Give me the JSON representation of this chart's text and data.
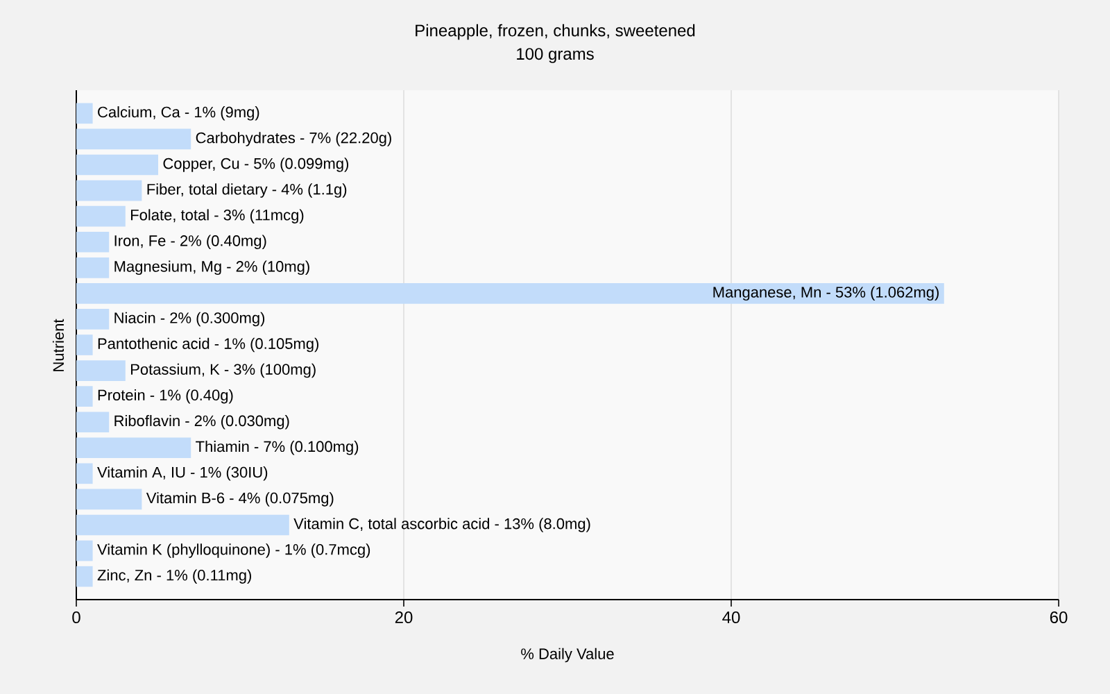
{
  "chart_data": {
    "type": "bar",
    "title": "Pineapple, frozen, chunks, sweetened",
    "subtitle": "100 grams",
    "xlabel": "% Daily Value",
    "ylabel": "Nutrient",
    "orientation": "horizontal",
    "categories": [
      "Calcium, Ca - 1% (9mg)",
      "Carbohydrates - 7% (22.20g)",
      "Copper, Cu - 5% (0.099mg)",
      "Fiber, total dietary - 4% (1.1g)",
      "Folate, total - 3% (11mcg)",
      "Iron, Fe - 2% (0.40mg)",
      "Magnesium, Mg - 2% (10mg)",
      "Manganese, Mn - 53% (1.062mg)",
      "Niacin - 2% (0.300mg)",
      "Pantothenic acid - 1% (0.105mg)",
      "Potassium, K - 3% (100mg)",
      "Protein - 1% (0.40g)",
      "Riboflavin - 2% (0.030mg)",
      "Thiamin - 7% (0.100mg)",
      "Vitamin A, IU - 1% (30IU)",
      "Vitamin B-6 - 4% (0.075mg)",
      "Vitamin C, total ascorbic acid - 13% (8.0mg)",
      "Vitamin K (phylloquinone) - 1% (0.7mcg)",
      "Zinc, Zn - 1% (0.11mg)"
    ],
    "values": [
      1,
      7,
      5,
      4,
      3,
      2,
      2,
      53,
      2,
      1,
      3,
      1,
      2,
      7,
      1,
      4,
      13,
      1,
      1
    ],
    "color": "#c2dcfa",
    "xlim": [
      0,
      60
    ],
    "xticks": [
      0,
      20,
      40,
      60
    ],
    "grid": "x"
  }
}
